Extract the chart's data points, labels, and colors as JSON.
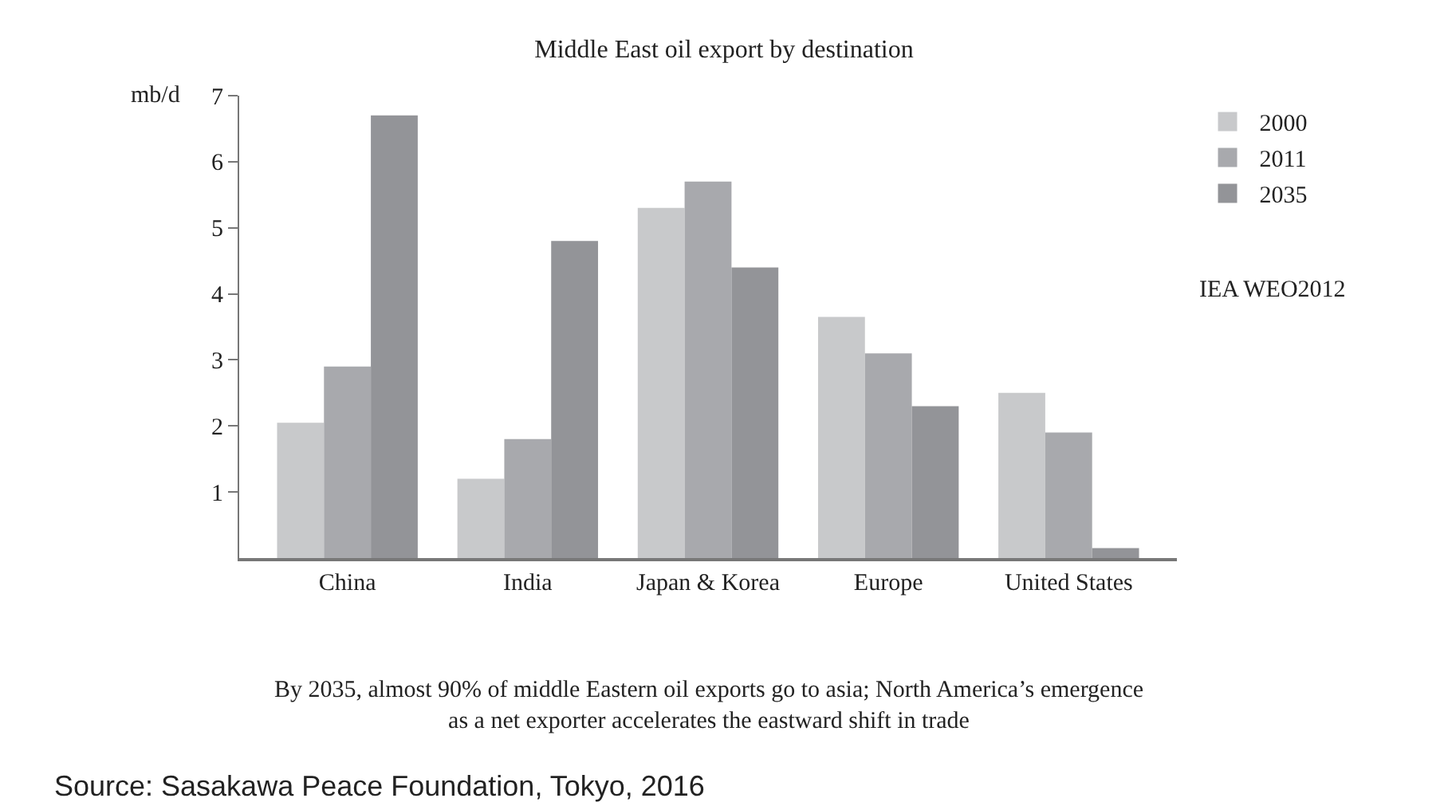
{
  "chart_data": {
    "type": "bar",
    "title": "Middle East oil export by destination",
    "ylabel": "mb/d",
    "categories": [
      "China",
      "India",
      "Japan & Korea",
      "Europe",
      "United States"
    ],
    "series": [
      {
        "name": "2000",
        "color": "#c8c9cb",
        "values": [
          2.05,
          1.2,
          5.3,
          3.65,
          2.5
        ]
      },
      {
        "name": "2011",
        "color": "#a8a9ad",
        "values": [
          2.9,
          1.8,
          5.7,
          3.1,
          1.9
        ]
      },
      {
        "name": "2035",
        "color": "#939498",
        "values": [
          6.7,
          4.8,
          4.4,
          2.3,
          0.15
        ]
      }
    ],
    "ylim": [
      0,
      7
    ],
    "yticks": [
      1,
      2,
      3,
      4,
      5,
      6,
      7
    ],
    "legend": "top right",
    "annotations": [
      "IEA WEO2012",
      "By 2035, almost 90% of middle Eastern oil exports go to asia; North America’s emergence as a net exporter accelerates the eastward shift in trade",
      "Source: Sasakawa Peace Foundation, Tokyo, 2016"
    ]
  }
}
